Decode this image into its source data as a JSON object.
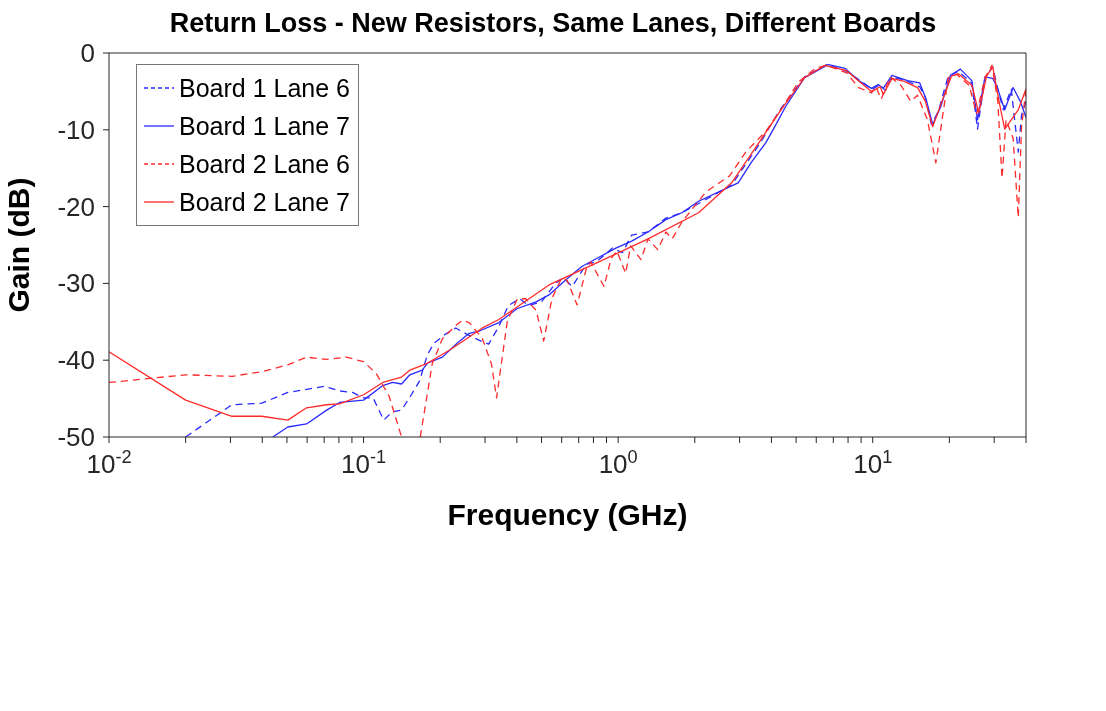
{
  "chart_data": {
    "type": "line",
    "title": "Return Loss - New Resistors, Same Lanes, Different Boards",
    "xlabel": "Frequency (GHz)",
    "ylabel": "Gain (dB)",
    "log": "x",
    "grid": false,
    "legend": "top left",
    "xlim": [
      0.01,
      40
    ],
    "ylim": [
      -50,
      0
    ],
    "xticks": [
      {
        "value": 0.01,
        "label": "10$^{-2}$"
      },
      {
        "value": 0.02,
        "label": null
      },
      {
        "value": 0.03,
        "label": null
      },
      {
        "value": 0.04,
        "label": null
      },
      {
        "value": 0.05,
        "label": null
      },
      {
        "value": 0.06,
        "label": null
      },
      {
        "value": 0.07,
        "label": null
      },
      {
        "value": 0.08,
        "label": null
      },
      {
        "value": 0.09,
        "label": null
      },
      {
        "value": 0.1,
        "label": "10$^{-1}$"
      },
      {
        "value": 0.2,
        "label": null
      },
      {
        "value": 0.3,
        "label": null
      },
      {
        "value": 0.4,
        "label": null
      },
      {
        "value": 0.5,
        "label": null
      },
      {
        "value": 0.6,
        "label": null
      },
      {
        "value": 0.7,
        "label": null
      },
      {
        "value": 0.8,
        "label": null
      },
      {
        "value": 0.9,
        "label": null
      },
      {
        "value": 1,
        "label": "10$^{0}$"
      },
      {
        "value": 2,
        "label": null
      },
      {
        "value": 3,
        "label": null
      },
      {
        "value": 4,
        "label": null
      },
      {
        "value": 5,
        "label": null
      },
      {
        "value": 6,
        "label": null
      },
      {
        "value": 7,
        "label": null
      },
      {
        "value": 8,
        "label": null
      },
      {
        "value": 9,
        "label": null
      },
      {
        "value": 10,
        "label": "10$^{1}$"
      },
      {
        "value": 20,
        "label": null
      },
      {
        "value": 30,
        "label": null
      },
      {
        "value": 40,
        "label": null
      }
    ],
    "yticks": [
      -50,
      -40,
      -30,
      -20,
      -10,
      0
    ],
    "series": [
      {
        "name": "Board 1 Lane 6",
        "color": "#2a2aff",
        "line_style": "dashed",
        "x": [
          0.02,
          0.0304,
          0.0398,
          0.0504,
          0.0597,
          0.0703,
          0.0805,
          0.0905,
          0.1,
          0.109,
          0.12,
          0.13,
          0.141,
          0.154,
          0.166,
          0.178,
          0.189,
          0.21,
          0.23,
          0.254,
          0.293,
          0.31,
          0.34,
          0.37,
          0.41,
          0.445,
          0.5,
          0.57,
          0.61,
          0.66,
          0.75,
          0.82,
          0.95,
          1.04,
          1.13,
          1.31,
          1.54,
          1.78,
          2.07,
          2.79,
          3.6,
          4.3,
          5.4,
          6.6,
          7.9,
          9.3,
          9.9,
          10.7,
          11.2,
          11.9,
          13.5,
          15.3,
          16.1,
          17,
          18.1,
          19.8,
          21.7,
          24.5,
          25.8,
          27.6,
          29.6,
          31,
          32.6,
          35,
          37.3,
          38.4,
          40
        ],
        "values": [
          -50,
          -45.8,
          -45.6,
          -44.2,
          -43.8,
          -43.4,
          -44.0,
          -44.2,
          -44.9,
          -44.9,
          -47.8,
          -46.7,
          -46.5,
          -44.5,
          -42.7,
          -39.3,
          -37.8,
          -36.6,
          -35.8,
          -36.6,
          -37.6,
          -37.9,
          -35.6,
          -32.9,
          -32.0,
          -32.9,
          -32.4,
          -29.9,
          -29.3,
          -30.4,
          -27.5,
          -27.2,
          -25.4,
          -26.0,
          -23.7,
          -23.3,
          -21.5,
          -20.8,
          -19.6,
          -17.2,
          -11.8,
          -7.5,
          -3.1,
          -1.5,
          -2.4,
          -4.0,
          -4.8,
          -4.1,
          -4.9,
          -3.1,
          -3.6,
          -4.4,
          -5.8,
          -9.3,
          -7.6,
          -3.0,
          -2.4,
          -3.9,
          -9.9,
          -3.2,
          -1.8,
          -4.7,
          -7.4,
          -4.7,
          -12.9,
          -8.1,
          -6.3
        ]
      },
      {
        "name": "Board 1 Lane 7",
        "color": "#2a2aff",
        "line_style": "solid",
        "x": [
          0.044,
          0.0504,
          0.0597,
          0.0716,
          0.0805,
          0.1,
          0.119,
          0.13,
          0.141,
          0.152,
          0.17,
          0.178,
          0.204,
          0.233,
          0.26,
          0.285,
          0.34,
          0.4,
          0.476,
          0.535,
          0.62,
          0.72,
          0.84,
          0.98,
          1.13,
          1.31,
          1.54,
          1.78,
          2.07,
          2.96,
          3.34,
          3.8,
          4.17,
          4.56,
          5.4,
          6.7,
          7.8,
          8.8,
          9.9,
          10.5,
          11,
          11.9,
          13.7,
          15.3,
          16.2,
          17.2,
          18.5,
          20.2,
          22.1,
          24.5,
          25.8,
          27.6,
          29.6,
          31,
          33,
          35.6,
          38,
          40
        ],
        "values": [
          -50,
          -48.7,
          -48.3,
          -46.5,
          -45.5,
          -45.2,
          -43.3,
          -42.9,
          -43.1,
          -41.9,
          -41.3,
          -40.4,
          -39.6,
          -37.8,
          -36.5,
          -36.2,
          -35.1,
          -33.3,
          -32.4,
          -31.5,
          -29.6,
          -27.8,
          -26.6,
          -25.4,
          -24.5,
          -23.3,
          -21.7,
          -20.8,
          -19.3,
          -16.9,
          -14.2,
          -11.7,
          -9.3,
          -6.9,
          -3.2,
          -1.5,
          -2.0,
          -3.6,
          -4.6,
          -4.1,
          -4.6,
          -2.9,
          -3.6,
          -3.9,
          -6.0,
          -9.3,
          -7.0,
          -2.9,
          -2.1,
          -3.6,
          -8.7,
          -3.1,
          -3.3,
          -4.7,
          -7.4,
          -4.5,
          -6.3,
          -8.4
        ]
      },
      {
        "name": "Board 2 Lane 6",
        "color": "#ff2a2a",
        "line_style": "dashed",
        "x": [
          0.01,
          0.02,
          0.0304,
          0.0398,
          0.0504,
          0.0597,
          0.0716,
          0.0857,
          0.1,
          0.112,
          0.126,
          0.141,
          0.154,
          0.167,
          0.186,
          0.204,
          0.228,
          0.245,
          0.26,
          0.293,
          0.318,
          0.333,
          0.367,
          0.402,
          0.433,
          0.476,
          0.51,
          0.55,
          0.6,
          0.63,
          0.69,
          0.748,
          0.78,
          0.88,
          0.94,
          0.99,
          1.07,
          1.12,
          1.23,
          1.31,
          1.43,
          1.54,
          1.63,
          1.78,
          2.21,
          2.74,
          3.17,
          3.8,
          4.4,
          5.1,
          5.95,
          6.6,
          7.9,
          8.8,
          9.9,
          10.3,
          10.8,
          11.7,
          12.9,
          14.1,
          15,
          16.4,
          17.7,
          18.5,
          19.8,
          21.4,
          23.9,
          25.6,
          27.6,
          29.4,
          31,
          32.2,
          33.4,
          35.6,
          37.3,
          38.4,
          40
        ],
        "values": [
          -42.9,
          -41.9,
          -42.1,
          -41.5,
          -40.6,
          -39.6,
          -39.9,
          -39.6,
          -40.2,
          -41.7,
          -44.7,
          -50,
          null,
          -50,
          -40.5,
          -37.2,
          -35.6,
          -34.8,
          -35.1,
          -37.2,
          -40.5,
          -44.9,
          -34.9,
          -32.0,
          -32.0,
          -33.5,
          -37.5,
          -31.9,
          -29.3,
          -29.6,
          -32.8,
          -28.2,
          -27.2,
          -30.4,
          -26.7,
          -25.8,
          -28.7,
          -25.1,
          -26.9,
          -24.2,
          -25.6,
          -23.3,
          -24.2,
          -22.0,
          -18.1,
          -16.0,
          -12.9,
          -10.2,
          -7.2,
          -3.8,
          -2.0,
          -1.6,
          -2.6,
          -4.5,
          -5.2,
          -4.4,
          -6.0,
          -3.1,
          -4.2,
          -6.3,
          -5.5,
          -8.7,
          -14.3,
          -9.9,
          -3.2,
          -2.8,
          -4.2,
          -7.9,
          -3.2,
          -1.6,
          -6.3,
          -16.3,
          -8.7,
          -11.1,
          -21.4,
          -9.7,
          -4.7
        ]
      },
      {
        "name": "Board 2 Lane 7",
        "color": "#ff2a2a",
        "line_style": "solid",
        "x": [
          0.01,
          0.02,
          0.0304,
          0.0398,
          0.0504,
          0.0597,
          0.0716,
          0.0805,
          0.1,
          0.119,
          0.141,
          0.152,
          0.178,
          0.217,
          0.254,
          0.293,
          0.34,
          0.535,
          0.84,
          1.31,
          2.07,
          2.79,
          3.6,
          4.4,
          5.4,
          6.5,
          7.9,
          9.3,
          9.9,
          10.7,
          11,
          11.9,
          13.3,
          15,
          16.1,
          17.2,
          18.7,
          20.4,
          21.7,
          24.5,
          26.1,
          28,
          29.6,
          31.6,
          33,
          35,
          37.3,
          40
        ],
        "values": [
          -38.9,
          -45.2,
          -47.3,
          -47.3,
          -47.8,
          -46.2,
          -45.8,
          -45.7,
          -44.5,
          -42.9,
          -42.2,
          -41.3,
          -40.4,
          -38.7,
          -37.2,
          -35.8,
          -34.7,
          -30.2,
          -27.2,
          -24.2,
          -20.8,
          -16.9,
          -11.5,
          -7.2,
          -3.2,
          -1.6,
          -2.3,
          -4.3,
          -5.0,
          -4.4,
          -5.4,
          -3.3,
          -3.7,
          -4.5,
          -6.3,
          -9.6,
          -6.3,
          -3.0,
          -2.7,
          -4.2,
          -7.8,
          -3.0,
          -1.8,
          -6.9,
          -9.9,
          -8.7,
          -7.4,
          -4.7
        ]
      }
    ]
  }
}
